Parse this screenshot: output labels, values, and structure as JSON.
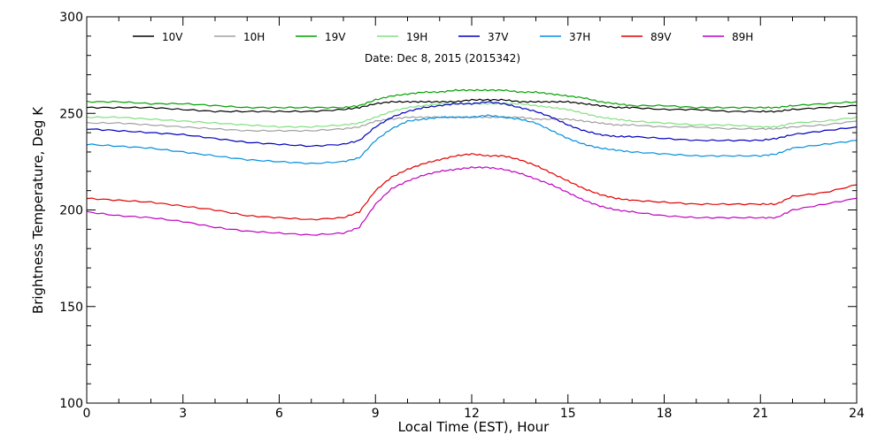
{
  "chart_data": {
    "type": "line",
    "title": "Date: Dec  8, 2015 (2015342)",
    "xlabel": "Local Time (EST), Hour",
    "ylabel": "Brightness Temperature, Deg K",
    "xlim": [
      0,
      24
    ],
    "ylim": [
      100,
      300
    ],
    "xticks": [
      0,
      3,
      6,
      9,
      12,
      15,
      18,
      21,
      24
    ],
    "yticks": [
      100,
      150,
      200,
      250,
      300
    ],
    "x_minor_step": 1,
    "y_minor_step": 10,
    "grid": false,
    "legend_position": "top, horizontal row",
    "x": [
      0,
      1,
      2,
      3,
      4,
      5,
      6,
      7,
      8,
      8.5,
      9,
      9.5,
      10,
      10.5,
      11,
      11.5,
      12,
      12.5,
      13,
      13.5,
      14,
      14.5,
      15,
      15.5,
      16,
      16.5,
      17,
      18,
      19,
      20,
      21,
      21.5,
      22,
      23,
      24
    ],
    "series": [
      {
        "name": "10V",
        "color": "#000000",
        "values": [
          253,
          253,
          253,
          252,
          251,
          251,
          251,
          251,
          252,
          253,
          255,
          256,
          256,
          256,
          256,
          256,
          257,
          257,
          257,
          256,
          256,
          256,
          256,
          255,
          254,
          253,
          253,
          252,
          252,
          251,
          251,
          251,
          252,
          253,
          254
        ]
      },
      {
        "name": "10H",
        "color": "#a0a0a0",
        "values": [
          245,
          245,
          244,
          243,
          242,
          241,
          241,
          241,
          242,
          243,
          246,
          247,
          248,
          248,
          248,
          248,
          248,
          248,
          248,
          248,
          247,
          247,
          247,
          246,
          245,
          244,
          244,
          243,
          243,
          242,
          242,
          242,
          243,
          244,
          246
        ]
      },
      {
        "name": "19V",
        "color": "#00a000",
        "values": [
          256,
          256,
          255,
          255,
          254,
          253,
          253,
          253,
          253,
          254,
          257,
          259,
          260,
          261,
          261,
          262,
          262,
          262,
          262,
          261,
          261,
          260,
          259,
          258,
          256,
          255,
          254,
          254,
          253,
          253,
          253,
          253,
          254,
          255,
          256
        ]
      },
      {
        "name": "19H",
        "color": "#80e080",
        "values": [
          248,
          248,
          247,
          246,
          245,
          244,
          243,
          243,
          244,
          245,
          248,
          251,
          253,
          254,
          255,
          255,
          255,
          255,
          255,
          255,
          254,
          253,
          252,
          250,
          248,
          247,
          246,
          245,
          244,
          244,
          243,
          243,
          245,
          246,
          248
        ]
      },
      {
        "name": "37V",
        "color": "#0000c0",
        "values": [
          242,
          241,
          240,
          239,
          237,
          235,
          234,
          233,
          234,
          236,
          243,
          248,
          251,
          253,
          254,
          255,
          255,
          256,
          255,
          253,
          251,
          248,
          244,
          241,
          239,
          238,
          238,
          237,
          236,
          236,
          236,
          237,
          239,
          241,
          243
        ]
      },
      {
        "name": "37H",
        "color": "#0090e0",
        "values": [
          234,
          233,
          232,
          230,
          228,
          226,
          225,
          224,
          225,
          227,
          236,
          242,
          246,
          247,
          248,
          248,
          248,
          249,
          248,
          247,
          245,
          241,
          237,
          234,
          232,
          231,
          230,
          229,
          228,
          228,
          228,
          229,
          232,
          234,
          236
        ]
      },
      {
        "name": "89V",
        "color": "#e00000",
        "values": [
          206,
          205,
          204,
          202,
          200,
          197,
          196,
          195,
          196,
          199,
          210,
          217,
          221,
          224,
          226,
          228,
          229,
          228,
          228,
          226,
          223,
          219,
          215,
          211,
          208,
          206,
          205,
          204,
          203,
          203,
          203,
          203,
          207,
          209,
          213
        ]
      },
      {
        "name": "89H",
        "color": "#c000c0",
        "values": [
          199,
          197,
          196,
          194,
          191,
          189,
          188,
          187,
          188,
          191,
          203,
          211,
          215,
          218,
          220,
          221,
          222,
          222,
          221,
          219,
          216,
          213,
          209,
          205,
          202,
          200,
          199,
          197,
          196,
          196,
          196,
          196,
          200,
          203,
          206
        ]
      }
    ]
  }
}
